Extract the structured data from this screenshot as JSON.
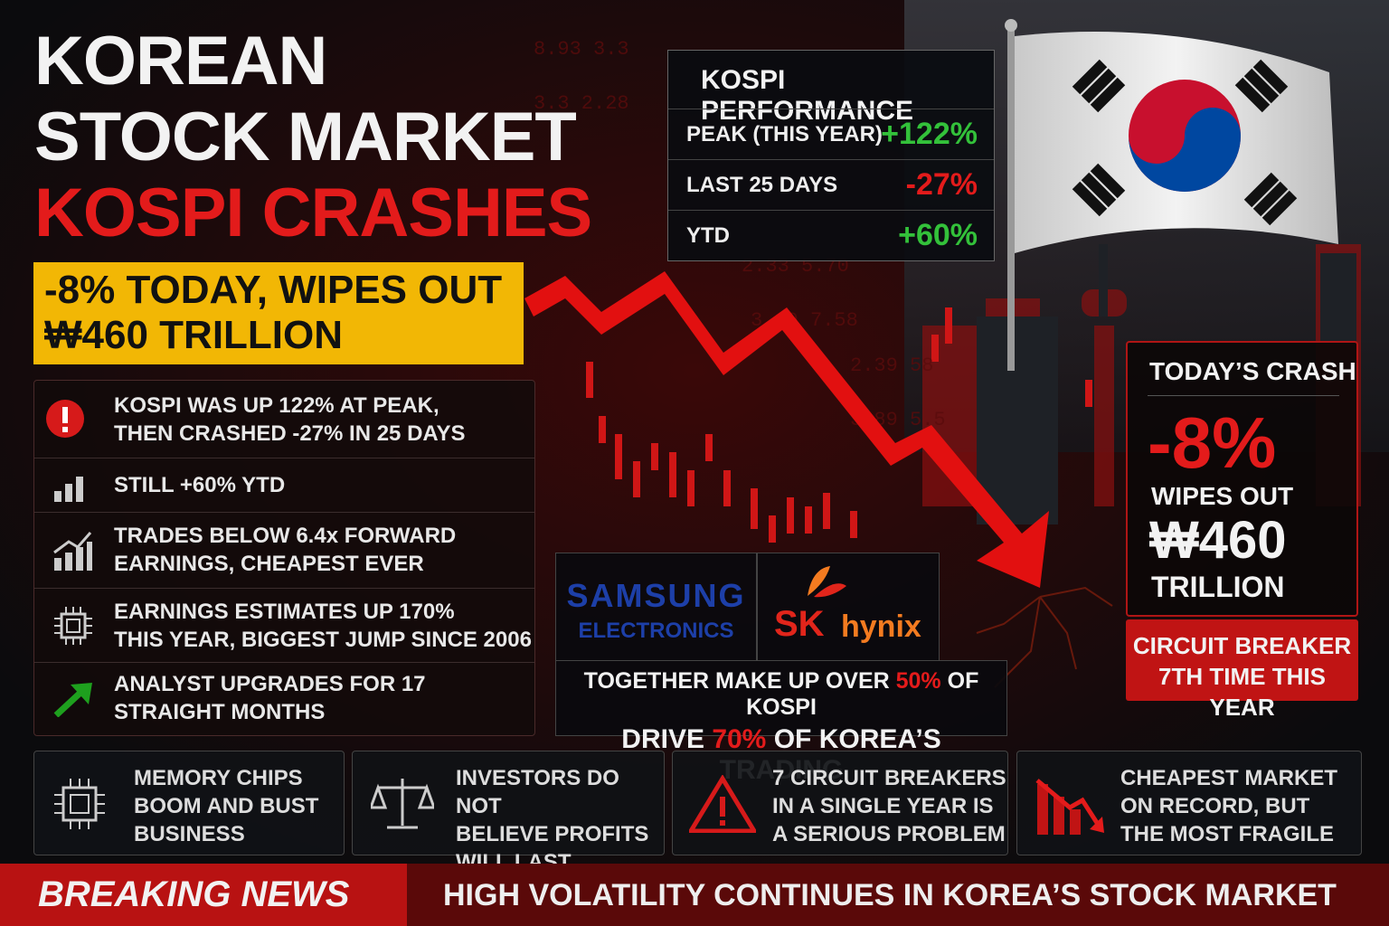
{
  "headline": {
    "line1": "KOREAN",
    "line2": "STOCK MARKET",
    "line3": "KOSPI CRASHES"
  },
  "banner": {
    "line1": "-8% TODAY, WIPES OUT",
    "line2": "₩460 TRILLION"
  },
  "points": [
    {
      "line1": "KOSPI WAS UP 122% AT PEAK,",
      "line2": "THEN CRASHED -27% IN 25 DAYS"
    },
    {
      "line1": "STILL +60% YTD"
    },
    {
      "line1": "TRADES BELOW 6.4x FORWARD",
      "line2": "EARNINGS, CHEAPEST EVER"
    },
    {
      "line1": "EARNINGS ESTIMATES UP 170%",
      "line2": "THIS YEAR, BIGGEST JUMP SINCE 2006"
    },
    {
      "line1": "ANALYST UPGRADES FOR 17",
      "line2": "STRAIGHT MONTHS"
    }
  ],
  "performance": {
    "title": "KOSPI PERFORMANCE",
    "rows": [
      {
        "label": "PEAK (THIS YEAR)",
        "value": "+122%"
      },
      {
        "label": "LAST 25 DAYS",
        "value": "-27%"
      },
      {
        "label": "YTD",
        "value": "+60%"
      }
    ]
  },
  "crash": {
    "title": "TODAY’S CRASH",
    "value": "-8%",
    "line1": "WIPES OUT",
    "amount": "₩460",
    "line2": "TRILLION"
  },
  "circuit": {
    "line1": "CIRCUIT BREAKER",
    "line2": "7TH TIME THIS YEAR"
  },
  "logos": {
    "samsung": "SAMSUNG",
    "samsung_sub": "ELECTRONICS",
    "sk": "SK",
    "hynix": "hynix"
  },
  "share": {
    "line1": [
      "TOGETHER MAKE UP OVER ",
      "50%",
      " OF KOSPI"
    ],
    "line2": [
      "DRIVE ",
      "70%",
      " OF KOREA’S TRADING"
    ]
  },
  "cards": [
    {
      "lines": [
        "MEMORY CHIPS",
        "BOOM AND BUST",
        "BUSINESS"
      ]
    },
    {
      "lines": [
        "INVESTORS DO NOT",
        "BELIEVE PROFITS",
        "WILL LAST"
      ]
    },
    {
      "lines": [
        "7 CIRCUIT BREAKERS",
        "IN A SINGLE YEAR IS",
        "A SERIOUS PROBLEM"
      ]
    },
    {
      "lines": [
        "CHEAPEST MARKET",
        "ON RECORD, BUT",
        "THE MOST FRAGILE"
      ]
    }
  ],
  "ticker": {
    "label": "BREAKING NEWS",
    "text": "HIGH VOLATILITY CONTINUES IN KOREA’S STOCK MARKET"
  }
}
